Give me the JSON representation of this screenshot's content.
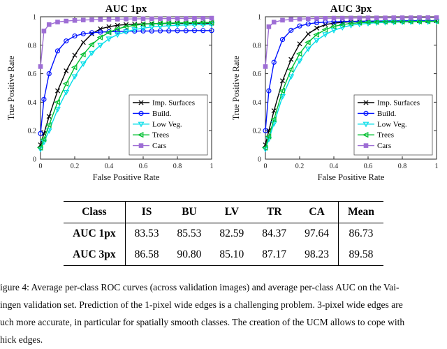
{
  "figure": {
    "caption_lines": [
      "igure 4: Average per-class ROC curves (across validation images) and average per-class AUC on the Vai-",
      "ingen validation set. Prediction of the 1-pixel wide edges is a challenging problem. 3-pixel wide edges are",
      "uch more accurate, in particular for spatially smooth classes. The creation of the UCM allows to cope with",
      "hick edges."
    ]
  },
  "table": {
    "col_headers": [
      "Class",
      "IS",
      "BU",
      "LV",
      "TR",
      "CA",
      "Mean"
    ],
    "rows": [
      {
        "label": "AUC 1px",
        "values": [
          "83.53",
          "85.53",
          "82.59",
          "84.37",
          "97.64",
          "86.73"
        ]
      },
      {
        "label": "AUC 3px",
        "values": [
          "86.58",
          "90.80",
          "85.10",
          "87.17",
          "98.23",
          "89.58"
        ]
      }
    ]
  },
  "chart_data": [
    {
      "type": "line",
      "title": "AUC 1px",
      "xlabel": "False Positive Rate",
      "ylabel": "True Positive Rate",
      "xlim": [
        0,
        1
      ],
      "ylim": [
        0,
        1
      ],
      "xticks": [
        0,
        0.2,
        0.4,
        0.6,
        0.8,
        1
      ],
      "yticks": [
        0,
        0.2,
        0.4,
        0.6,
        0.8,
        1
      ],
      "grid": false,
      "legend_position": "south-east",
      "x": [
        0,
        0.02,
        0.05,
        0.1,
        0.15,
        0.2,
        0.25,
        0.3,
        0.35,
        0.4,
        0.45,
        0.5,
        0.55,
        0.6,
        0.65,
        0.7,
        0.75,
        0.8,
        0.85,
        0.9,
        0.95,
        1
      ],
      "series": [
        {
          "name": "Imp. Surfaces",
          "color": "#000000",
          "marker": "x",
          "y": [
            0.1,
            0.18,
            0.3,
            0.48,
            0.62,
            0.73,
            0.82,
            0.88,
            0.915,
            0.93,
            0.94,
            0.945,
            0.948,
            0.95,
            0.951,
            0.952,
            0.953,
            0.954,
            0.954,
            0.955,
            0.955,
            0.955
          ]
        },
        {
          "name": "Build.",
          "color": "#0012ff",
          "marker": "circle",
          "y": [
            0.18,
            0.42,
            0.6,
            0.76,
            0.83,
            0.865,
            0.88,
            0.888,
            0.892,
            0.895,
            0.897,
            0.898,
            0.899,
            0.9,
            0.9,
            0.901,
            0.901,
            0.902,
            0.902,
            0.903,
            0.903,
            0.903
          ]
        },
        {
          "name": "Low Veg.",
          "color": "#00dde8",
          "marker": "triangle-down",
          "y": [
            0.07,
            0.12,
            0.2,
            0.35,
            0.47,
            0.58,
            0.67,
            0.745,
            0.8,
            0.845,
            0.875,
            0.895,
            0.91,
            0.92,
            0.928,
            0.933,
            0.937,
            0.94,
            0.942,
            0.944,
            0.945,
            0.946
          ]
        },
        {
          "name": "Trees",
          "color": "#00bf30",
          "marker": "triangle-left",
          "y": [
            0.08,
            0.14,
            0.24,
            0.4,
            0.53,
            0.645,
            0.735,
            0.805,
            0.855,
            0.89,
            0.915,
            0.93,
            0.94,
            0.947,
            0.951,
            0.954,
            0.956,
            0.957,
            0.958,
            0.959,
            0.96,
            0.96
          ]
        },
        {
          "name": "Cars",
          "color": "#9e6ed5",
          "marker": "square",
          "y": [
            0.65,
            0.9,
            0.945,
            0.963,
            0.97,
            0.974,
            0.977,
            0.979,
            0.981,
            0.982,
            0.983,
            0.984,
            0.985,
            0.986,
            0.986,
            0.987,
            0.987,
            0.988,
            0.988,
            0.989,
            0.989,
            0.99
          ]
        }
      ]
    },
    {
      "type": "line",
      "title": "AUC 3px",
      "xlabel": "False Positive Rate",
      "ylabel": "True Positive Rate",
      "xlim": [
        0,
        1
      ],
      "ylim": [
        0,
        1
      ],
      "xticks": [
        0,
        0.2,
        0.4,
        0.6,
        0.8,
        1
      ],
      "yticks": [
        0,
        0.2,
        0.4,
        0.6,
        0.8,
        1
      ],
      "grid": false,
      "legend_position": "south-east",
      "x": [
        0,
        0.02,
        0.05,
        0.1,
        0.15,
        0.2,
        0.25,
        0.3,
        0.35,
        0.4,
        0.45,
        0.5,
        0.55,
        0.6,
        0.65,
        0.7,
        0.75,
        0.8,
        0.85,
        0.9,
        0.95,
        1
      ],
      "series": [
        {
          "name": "Imp. Surfaces",
          "color": "#000000",
          "marker": "x",
          "y": [
            0.1,
            0.2,
            0.34,
            0.55,
            0.7,
            0.81,
            0.88,
            0.92,
            0.945,
            0.955,
            0.961,
            0.965,
            0.967,
            0.968,
            0.969,
            0.97,
            0.97,
            0.971,
            0.971,
            0.972,
            0.972,
            0.972
          ]
        },
        {
          "name": "Build.",
          "color": "#0012ff",
          "marker": "circle",
          "y": [
            0.2,
            0.48,
            0.68,
            0.84,
            0.905,
            0.935,
            0.95,
            0.958,
            0.962,
            0.965,
            0.966,
            0.967,
            0.968,
            0.969,
            0.97,
            0.97,
            0.971,
            0.971,
            0.972,
            0.972,
            0.972,
            0.973
          ]
        },
        {
          "name": "Low Veg.",
          "color": "#00dde8",
          "marker": "triangle-down",
          "y": [
            0.07,
            0.14,
            0.25,
            0.44,
            0.58,
            0.69,
            0.775,
            0.835,
            0.875,
            0.905,
            0.925,
            0.94,
            0.948,
            0.954,
            0.958,
            0.96,
            0.962,
            0.963,
            0.964,
            0.965,
            0.965,
            0.966
          ]
        },
        {
          "name": "Trees",
          "color": "#00bf30",
          "marker": "triangle-left",
          "y": [
            0.08,
            0.16,
            0.28,
            0.48,
            0.63,
            0.74,
            0.82,
            0.875,
            0.91,
            0.932,
            0.945,
            0.953,
            0.958,
            0.961,
            0.963,
            0.965,
            0.966,
            0.966,
            0.967,
            0.967,
            0.968,
            0.968
          ]
        },
        {
          "name": "Cars",
          "color": "#9e6ed5",
          "marker": "square",
          "y": [
            0.65,
            0.93,
            0.962,
            0.976,
            0.981,
            0.984,
            0.986,
            0.988,
            0.989,
            0.99,
            0.99,
            0.991,
            0.991,
            0.992,
            0.992,
            0.992,
            0.993,
            0.993,
            0.993,
            0.994,
            0.994,
            0.994
          ]
        }
      ]
    }
  ]
}
